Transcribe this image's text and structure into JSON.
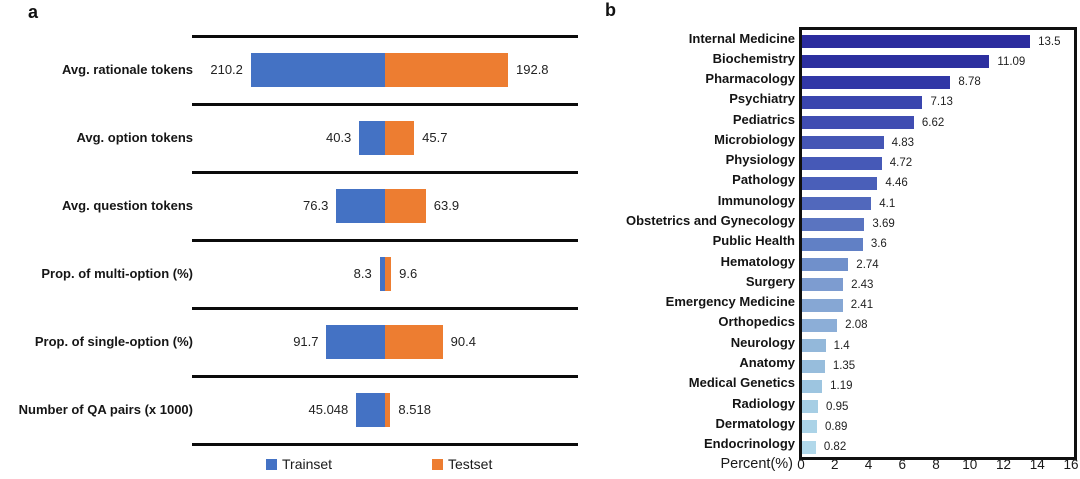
{
  "figure": {
    "panel_a_label": "a",
    "panel_b_label": "b"
  },
  "chart_data": [
    {
      "type": "bar",
      "variant": "horizontal-diverging",
      "panel": "a",
      "categories": [
        "Avg. rationale tokens",
        "Avg. option tokens",
        "Avg. question tokens",
        "Prop. of multi-option (%)",
        "Prop. of single-option (%)",
        "Number of QA pairs (x 1000)"
      ],
      "series": [
        {
          "name": "Trainset",
          "color": "#4472C4",
          "values": [
            "210.2",
            "40.3",
            "76.3",
            "8.3",
            "91.7",
            "45.048"
          ]
        },
        {
          "name": "Testset",
          "color": "#ED7D31",
          "values": [
            "192.8",
            "45.7",
            "63.9",
            "9.6",
            "90.4",
            "8.518"
          ]
        }
      ],
      "legend_position": "bottom",
      "grid": false
    },
    {
      "type": "bar",
      "variant": "horizontal",
      "panel": "b",
      "categories": [
        "Internal Medicine",
        "Biochemistry",
        "Pharmacology",
        "Psychiatry",
        "Pediatrics",
        "Microbiology",
        "Physiology",
        "Pathology",
        "Immunology",
        "Obstetrics and Gynecology",
        "Public Health",
        "Hematology",
        "Surgery",
        "Emergency Medicine",
        "Orthopedics",
        "Neurology",
        "Anatomy",
        "Medical Genetics",
        "Radiology",
        "Dermatology",
        "Endocrinology"
      ],
      "values": [
        "13.5",
        "11.09",
        "8.78",
        "7.13",
        "6.62",
        "4.83",
        "4.72",
        "4.46",
        "4.1",
        "3.69",
        "3.6",
        "2.74",
        "2.43",
        "2.41",
        "2.08",
        "1.4",
        "1.35",
        "1.19",
        "0.95",
        "0.89",
        "0.82"
      ],
      "bar_colors": [
        "#2B2C9E",
        "#2C2F9F",
        "#3137A6",
        "#3A45AE",
        "#404DB2",
        "#4556B5",
        "#4659B7",
        "#4A5FB9",
        "#5168BC",
        "#5A74C0",
        "#6180C5",
        "#7090CB",
        "#7D9CD0",
        "#86A7D4",
        "#8CAED7",
        "#93B8DA",
        "#97BDDC",
        "#9DC5E0",
        "#A6CEE4",
        "#ABD3E7",
        "#B1D8EA"
      ],
      "xlabel": "Percent(%)",
      "xlim": [
        0,
        16
      ],
      "xticks": [
        "0",
        "2",
        "4",
        "6",
        "8",
        "10",
        "12",
        "14",
        "16"
      ],
      "grid": false,
      "border_color": "#101010"
    }
  ]
}
